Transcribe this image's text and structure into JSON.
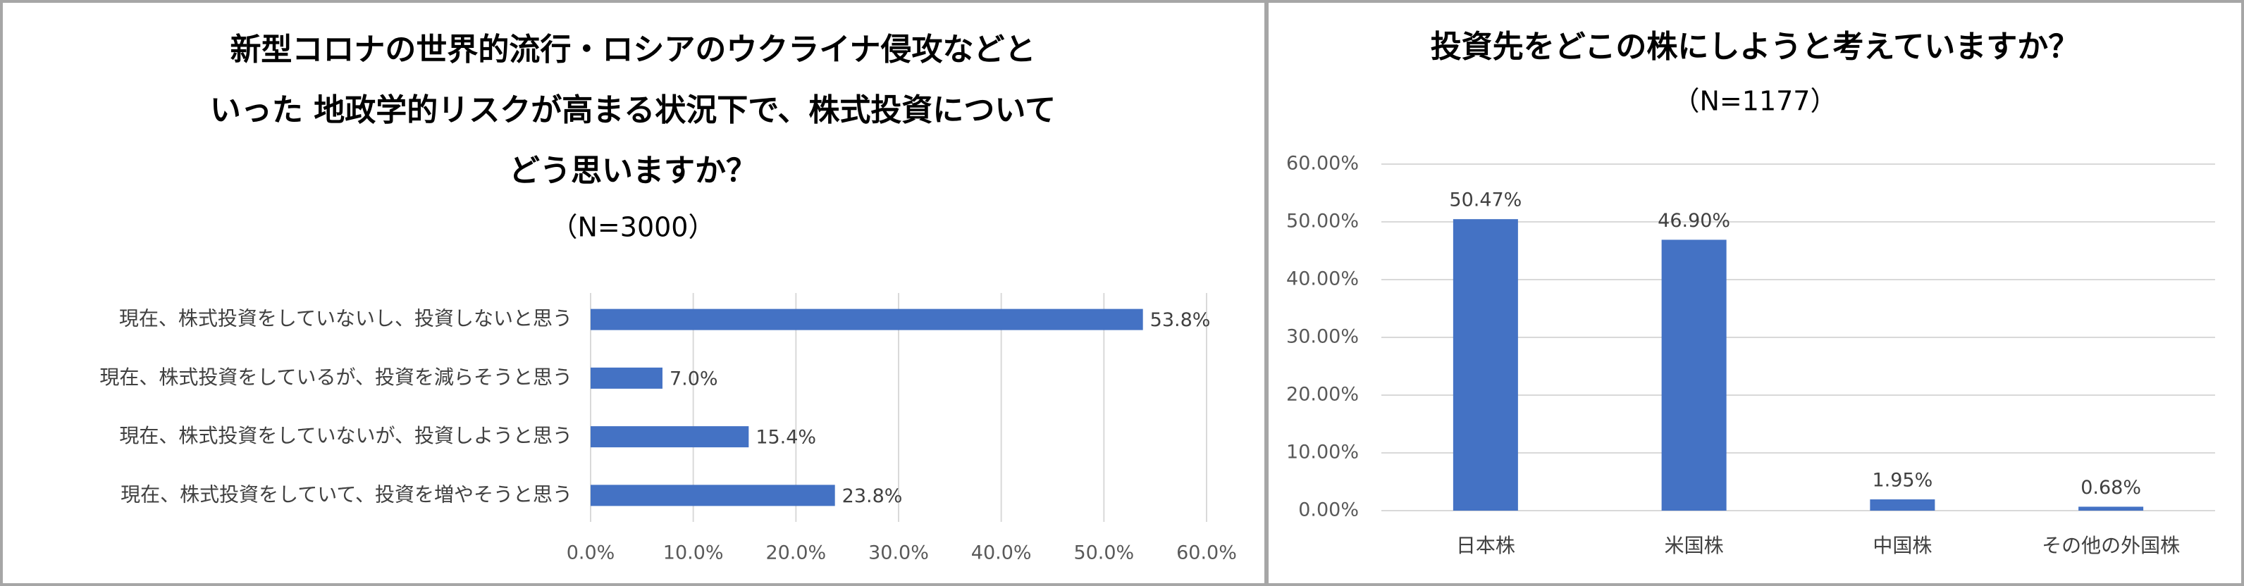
{
  "chart_data": [
    {
      "type": "bar",
      "orientation": "horizontal",
      "title": [
        "新型コロナの世界的流行・ロシアのウクライナ侵攻などと",
        "いった 地政学的リスクが高まる状況下で、株式投資について",
        "どう思いますか？"
      ],
      "subtitle": "（N=3000）",
      "categories": [
        "現在、株式投資をしていないし、投資しないと思う",
        "現在、株式投資をしているが、投資を減らそうと思う",
        "現在、株式投資をしていないが、投資しようと思う",
        "現在、株式投資をしていて、投資を増やそうと思う"
      ],
      "values": [
        53.8,
        7.0,
        15.4,
        23.8
      ],
      "value_labels": [
        "53.8%",
        "7.0%",
        "15.4%",
        "23.8%"
      ],
      "color": "#4472c4",
      "xlim": [
        0,
        60
      ],
      "xticks": [
        {
          "value": 0,
          "label": "0.0%"
        },
        {
          "value": 10,
          "label": "10.0%"
        },
        {
          "value": 20,
          "label": "20.0%"
        },
        {
          "value": 30,
          "label": "30.0%"
        },
        {
          "value": 40,
          "label": "40.0%"
        },
        {
          "value": 50,
          "label": "50.0%"
        },
        {
          "value": 60,
          "label": "60.0%"
        }
      ],
      "grid": true
    },
    {
      "type": "bar",
      "orientation": "vertical",
      "title": [
        "投資先をどこの株にしようと考えていますか？"
      ],
      "subtitle": "（N=1177）",
      "categories": [
        "日本株",
        "米国株",
        "中国株",
        "その他の外国株"
      ],
      "values": [
        50.47,
        46.9,
        1.95,
        0.68
      ],
      "value_labels": [
        "50.47%",
        "46.90%",
        "1.95%",
        "0.68%"
      ],
      "color": "#4472c4",
      "ylim": [
        0,
        60
      ],
      "yticks": [
        {
          "value": 0,
          "label": "0.00%"
        },
        {
          "value": 10,
          "label": "10.00%"
        },
        {
          "value": 20,
          "label": "20.00%"
        },
        {
          "value": 30,
          "label": "30.00%"
        },
        {
          "value": 40,
          "label": "40.00%"
        },
        {
          "value": 50,
          "label": "50.00%"
        },
        {
          "value": 60,
          "label": "60.00%"
        }
      ],
      "grid": true
    }
  ]
}
